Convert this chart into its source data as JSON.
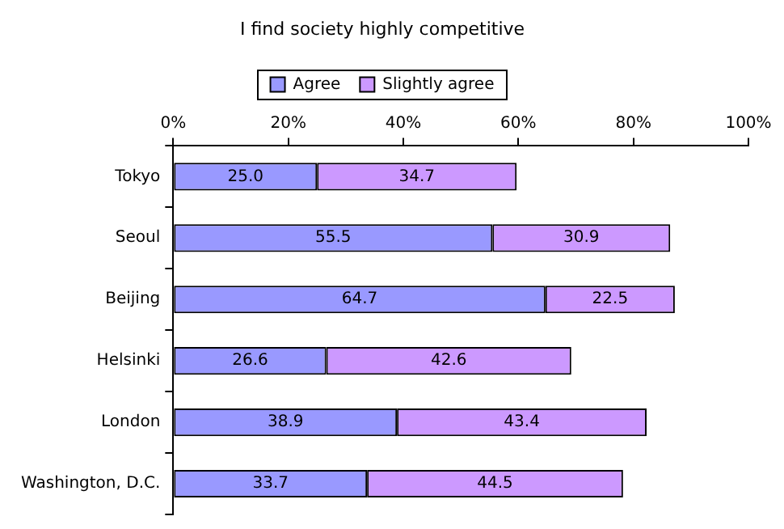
{
  "chart_data": {
    "type": "bar",
    "orientation": "horizontal",
    "stacked": true,
    "title": "I find society highly competitive",
    "categories": [
      "Tokyo",
      "Seoul",
      "Beijing",
      "Helsinki",
      "London",
      "Washington, D.C."
    ],
    "series": [
      {
        "name": "Agree",
        "color": "#9999ff",
        "values": [
          25.0,
          55.5,
          64.7,
          26.6,
          38.9,
          33.7
        ],
        "value_labels": [
          "25.0",
          "55.5",
          "64.7",
          "26.6",
          "38.9",
          "33.7"
        ]
      },
      {
        "name": "Slightly agree",
        "color": "#cc99ff",
        "values": [
          34.7,
          30.9,
          22.5,
          42.6,
          43.4,
          44.5
        ],
        "value_labels": [
          "34.7",
          "30.9",
          "22.5",
          "42.6",
          "43.4",
          "44.5"
        ]
      }
    ],
    "xlim": [
      0,
      100
    ],
    "xticks": [
      {
        "value": 0,
        "label": "0%"
      },
      {
        "value": 20,
        "label": "20%"
      },
      {
        "value": 40,
        "label": "40%"
      },
      {
        "value": 60,
        "label": "60%"
      },
      {
        "value": 80,
        "label": "80%"
      },
      {
        "value": 100,
        "label": "100%"
      }
    ],
    "grid": false,
    "legend": "top"
  }
}
